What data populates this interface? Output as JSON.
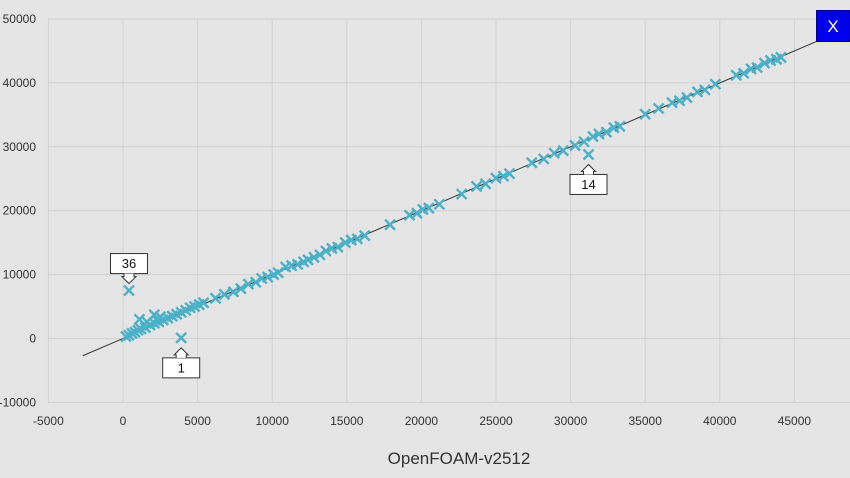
{
  "close_button": {
    "label": "X"
  },
  "chart_data": {
    "type": "scatter",
    "title": "",
    "xlabel": "OpenFOAM-v2512",
    "ylabel": "",
    "xlim": [
      -5000,
      48500
    ],
    "ylim": [
      -10000,
      50000
    ],
    "grid": true,
    "x_ticks": [
      -5000,
      0,
      5000,
      10000,
      15000,
      20000,
      25000,
      30000,
      35000,
      40000,
      45000
    ],
    "y_ticks": [
      -10000,
      0,
      10000,
      20000,
      30000,
      40000,
      50000
    ],
    "marker": "x",
    "colors": {
      "marker": "#4bb0c8",
      "fit_line": "#333333",
      "background": "#e5e5e5",
      "grid": "#d2d2d2"
    },
    "fit_line": {
      "slope": 1.0,
      "intercept": 0,
      "x_range": [
        -2700,
        48500
      ]
    },
    "series": [
      {
        "points": [
          [
            200,
            300
          ],
          [
            400,
            500
          ],
          [
            600,
            800
          ],
          [
            800,
            1000
          ],
          [
            1000,
            1300
          ],
          [
            1200,
            1500
          ],
          [
            1500,
            1700
          ],
          [
            1800,
            2100
          ],
          [
            2100,
            2400
          ],
          [
            2400,
            2600
          ],
          [
            2700,
            2900
          ],
          [
            3000,
            3200
          ],
          [
            3300,
            3500
          ],
          [
            3600,
            3800
          ],
          [
            3900,
            4100
          ],
          [
            4200,
            4400
          ],
          [
            4500,
            4800
          ],
          [
            4800,
            5000
          ],
          [
            5100,
            5300
          ],
          [
            5400,
            5600
          ],
          [
            1100,
            3000
          ],
          [
            2100,
            3700
          ],
          [
            2500,
            3400
          ],
          [
            1600,
            2600
          ],
          [
            6200,
            6300
          ],
          [
            6800,
            6900
          ],
          [
            7400,
            7300
          ],
          [
            7900,
            7800
          ],
          [
            8400,
            8500
          ],
          [
            8900,
            8800
          ],
          [
            9300,
            9400
          ],
          [
            9700,
            9600
          ],
          [
            10100,
            10000
          ],
          [
            10400,
            10300
          ],
          [
            10900,
            11200
          ],
          [
            11300,
            11400
          ],
          [
            11700,
            11600
          ],
          [
            12100,
            12000
          ],
          [
            12400,
            12300
          ],
          [
            12800,
            12700
          ],
          [
            13200,
            13100
          ],
          [
            13600,
            13700
          ],
          [
            14000,
            14100
          ],
          [
            14400,
            14300
          ],
          [
            14900,
            15000
          ],
          [
            15300,
            15400
          ],
          [
            15700,
            15600
          ],
          [
            16200,
            16100
          ],
          [
            17900,
            17800
          ],
          [
            19200,
            19300
          ],
          [
            19700,
            19600
          ],
          [
            20100,
            20200
          ],
          [
            20500,
            20400
          ],
          [
            21200,
            21000
          ],
          [
            22700,
            22600
          ],
          [
            23700,
            23800
          ],
          [
            24300,
            24200
          ],
          [
            25000,
            25100
          ],
          [
            25500,
            25400
          ],
          [
            25900,
            25800
          ],
          [
            27400,
            27500
          ],
          [
            28200,
            28100
          ],
          [
            28900,
            29000
          ],
          [
            29500,
            29400
          ],
          [
            30300,
            30200
          ],
          [
            30900,
            30800
          ],
          [
            31500,
            31600
          ],
          [
            31900,
            32000
          ],
          [
            32400,
            32300
          ],
          [
            32900,
            33000
          ],
          [
            33300,
            33200
          ],
          [
            35000,
            35100
          ],
          [
            35900,
            36000
          ],
          [
            36800,
            36900
          ],
          [
            37300,
            37200
          ],
          [
            37800,
            37700
          ],
          [
            38500,
            38600
          ],
          [
            39000,
            38900
          ],
          [
            39700,
            39800
          ],
          [
            41100,
            41200
          ],
          [
            41600,
            41500
          ],
          [
            42100,
            42200
          ],
          [
            42500,
            42400
          ],
          [
            43000,
            43100
          ],
          [
            43400,
            43500
          ],
          [
            43800,
            43700
          ],
          [
            44100,
            44000
          ],
          [
            400,
            7500
          ],
          [
            3900,
            100
          ],
          [
            31200,
            28800
          ]
        ]
      }
    ],
    "annotations": [
      {
        "label": "36",
        "x": 400,
        "y": 7500,
        "side": "above"
      },
      {
        "label": "1",
        "x": 3900,
        "y": 100,
        "side": "below"
      },
      {
        "label": "14",
        "x": 31200,
        "y": 28800,
        "side": "below"
      }
    ]
  }
}
